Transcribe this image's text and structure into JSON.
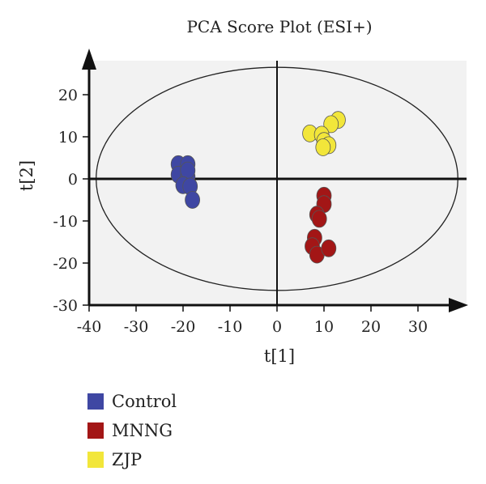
{
  "chart_data": {
    "type": "scatter",
    "title": "PCA Score Plot (ESI+)",
    "xlabel": "t[1]",
    "ylabel": "t[2]",
    "xlim": [
      -40,
      40
    ],
    "ylim": [
      -30,
      27
    ],
    "x_ticks": [
      -40,
      -30,
      -20,
      -10,
      0,
      10,
      20,
      30
    ],
    "y_ticks": [
      -30,
      -20,
      -10,
      0,
      10,
      20
    ],
    "grid": false,
    "legend_position": "bottom-left",
    "ellipse": {
      "cx": 0,
      "cy": 0,
      "rx": 38.5,
      "ry": 26.5
    },
    "series": [
      {
        "name": "Control",
        "color": "#3f47a3",
        "points": [
          {
            "x": -21,
            "y": 3.5
          },
          {
            "x": -19,
            "y": 3.5
          },
          {
            "x": -21,
            "y": 1
          },
          {
            "x": -19,
            "y": 0.5
          },
          {
            "x": -19,
            "y": 2
          },
          {
            "x": -20,
            "y": -1.5
          },
          {
            "x": -18.5,
            "y": -1.8
          },
          {
            "x": -18,
            "y": -5
          }
        ]
      },
      {
        "name": "MNNG",
        "color": "#a31616",
        "points": [
          {
            "x": 10,
            "y": -4
          },
          {
            "x": 10,
            "y": -6
          },
          {
            "x": 8.5,
            "y": -8.5
          },
          {
            "x": 9,
            "y": -9.5
          },
          {
            "x": 8,
            "y": -14
          },
          {
            "x": 7.5,
            "y": -16
          },
          {
            "x": 8.5,
            "y": -18
          },
          {
            "x": 11,
            "y": -16.5
          }
        ]
      },
      {
        "name": "ZJP",
        "color": "#f2e63a",
        "points": [
          {
            "x": 13,
            "y": 14
          },
          {
            "x": 11.5,
            "y": 13
          },
          {
            "x": 7,
            "y": 10.8
          },
          {
            "x": 9.5,
            "y": 10.5
          },
          {
            "x": 10,
            "y": 9
          },
          {
            "x": 11,
            "y": 8
          },
          {
            "x": 9.8,
            "y": 7.5
          }
        ]
      }
    ]
  }
}
